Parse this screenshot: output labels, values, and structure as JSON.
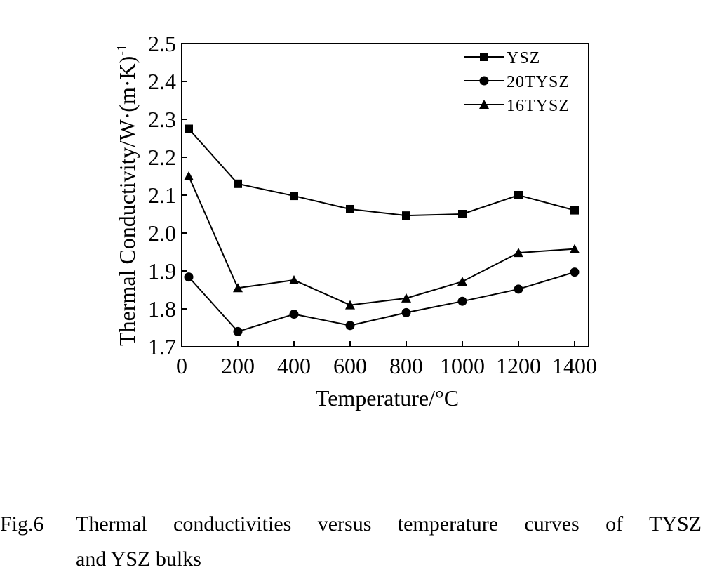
{
  "chart_data": {
    "type": "line",
    "xlabel": "Temperature/°C",
    "ylabel": "Thermal Conductivity/W·(m·K)",
    "ylabel_superscript": "-1",
    "x_ticks": [
      "0",
      "200",
      "400",
      "600",
      "800",
      "1000",
      "1200",
      "1400"
    ],
    "y_ticks": [
      "1.7",
      "1.8",
      "1.9",
      "2.0",
      "2.1",
      "2.2",
      "2.3",
      "2.4",
      "2.5"
    ],
    "xlim": [
      0,
      1450
    ],
    "ylim": [
      1.7,
      2.5
    ],
    "grid": false,
    "legend_position": "top-right",
    "x": [
      25,
      200,
      400,
      600,
      800,
      1000,
      1200,
      1400
    ],
    "series": [
      {
        "name": "YSZ",
        "marker": "square",
        "values": [
          2.275,
          2.13,
          2.098,
          2.063,
          2.046,
          2.05,
          2.1,
          2.06
        ]
      },
      {
        "name": "20TYSZ",
        "marker": "circle",
        "values": [
          1.884,
          1.74,
          1.786,
          1.756,
          1.79,
          1.82,
          1.852,
          1.897
        ]
      },
      {
        "name": "16TYSZ",
        "marker": "triangle",
        "values": [
          2.15,
          1.855,
          1.876,
          1.81,
          1.828,
          1.872,
          1.948,
          1.958
        ]
      }
    ]
  },
  "caption": {
    "label": "Fig.6",
    "line1": "Thermal conductivities versus temperature curves of TYSZ",
    "line2": "and YSZ bulks"
  }
}
